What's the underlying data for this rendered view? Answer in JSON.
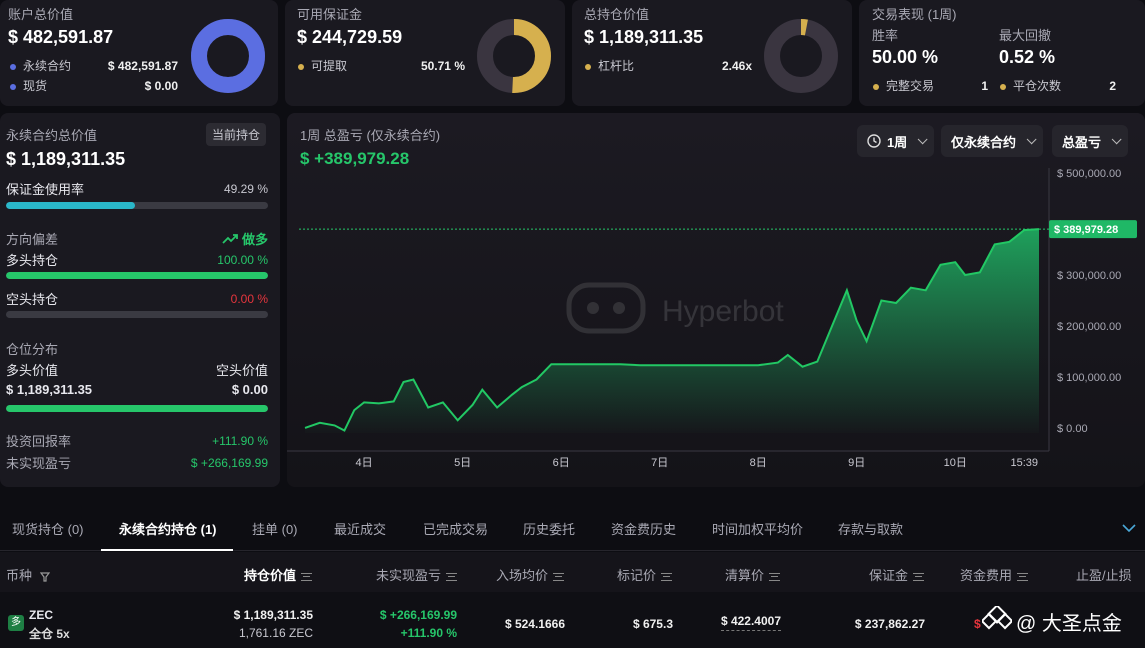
{
  "account": {
    "title": "账户总价值",
    "total": "$ 482,591.87",
    "items": [
      {
        "label": "永续合约",
        "value": "$ 482,591.87",
        "color": "#5b6ee1"
      },
      {
        "label": "现货",
        "value": "$ 0.00",
        "color": "#5b6ee1"
      }
    ],
    "ring_fraction": 1.0,
    "ring_color": "#5b6ee1"
  },
  "margin": {
    "title": "可用保证金",
    "total": "$ 244,729.59",
    "item_label": "可提取",
    "item_value": "50.71 %",
    "dot_color": "#d6b04e",
    "ring_fraction": 0.5071,
    "ring_color": "#d6b04e"
  },
  "position": {
    "title": "总持仓价值",
    "total": "$ 1,189,311.35",
    "item_label": "杠杆比",
    "item_value": "2.46x",
    "dot_color": "#d6b04e",
    "ring_fraction": 0.03,
    "ring_color": "#d6b04e"
  },
  "perf": {
    "title": "交易表现 (1周)",
    "winrate_label": "胜率",
    "winrate_value": "50.00 %",
    "drawdown_label": "最大回撤",
    "drawdown_value": "0.52 %",
    "trades_label": "完整交易",
    "trades_value": "1",
    "close_label": "平仓次数",
    "close_value": "2",
    "dot_color": "#d6b04e"
  },
  "left": {
    "perp_label": "永续合约总价值",
    "current_btn": "当前持仓",
    "perp_value": "$ 1,189,311.35",
    "margin_use_label": "保证金使用率",
    "margin_use_value": "49.29 %",
    "margin_use_fraction": 0.4929,
    "bias_label": "方向偏差",
    "bias_value": "做多",
    "long_label": "多头持仓",
    "long_value": "100.00 %",
    "long_fraction": 1.0,
    "short_label": "空头持仓",
    "short_value": "0.00 %",
    "dist_label": "仓位分布",
    "long_val_label": "多头价值",
    "short_val_label": "空头价值",
    "long_val": "$ 1,189,311.35",
    "short_val": "$ 0.00",
    "roi_label": "投资回报率",
    "roi_value": "+111.90 %",
    "upnl_label": "未实现盈亏",
    "upnl_value": "$ +266,169.99"
  },
  "chart": {
    "title": "1周 总盈亏 (仅永续合约)",
    "value": "$ +389,979.28",
    "dd_period": "1周",
    "dd_scope": "仅永续合约",
    "dd_metric": "总盈亏",
    "watermark": "Hyperbot",
    "last_label": "$ 389,979.28"
  },
  "chart_data": {
    "type": "area",
    "x_ticks": [
      "4日",
      "5日",
      "6日",
      "7日",
      "8日",
      "9日",
      "10日",
      "15:39"
    ],
    "y_ticks": [
      "$ 500,000.00",
      "$ 400,000.00",
      "$ 300,000.00",
      "$ 200,000.00",
      "$ 100,000.00",
      "$ 0.00"
    ],
    "ylim": [
      -10000,
      500000
    ],
    "x": [
      3.4,
      3.55,
      3.7,
      3.8,
      3.9,
      4.0,
      4.15,
      4.3,
      4.4,
      4.5,
      4.65,
      4.8,
      4.95,
      5.1,
      5.2,
      5.35,
      5.5,
      5.6,
      5.75,
      5.9,
      6.0,
      6.2,
      6.4,
      6.6,
      6.8,
      7.0,
      7.2,
      7.4,
      7.6,
      7.8,
      8.0,
      8.2,
      8.3,
      8.45,
      8.6,
      8.75,
      8.9,
      9.0,
      9.1,
      9.25,
      9.4,
      9.55,
      9.7,
      9.85,
      10.0,
      10.1,
      10.25,
      10.4,
      10.55,
      10.7,
      10.85
    ],
    "y": [
      0,
      10000,
      5000,
      -5000,
      35000,
      50000,
      48000,
      52000,
      90000,
      95000,
      40000,
      50000,
      15000,
      45000,
      75000,
      40000,
      65000,
      80000,
      95000,
      125000,
      125000,
      125000,
      125000,
      125000,
      123000,
      123000,
      123000,
      123000,
      123000,
      123000,
      123000,
      128000,
      143000,
      120000,
      130000,
      200000,
      270000,
      210000,
      170000,
      250000,
      245000,
      275000,
      270000,
      320000,
      325000,
      300000,
      305000,
      360000,
      365000,
      388000,
      389979.28
    ]
  },
  "tabs": [
    {
      "label": "现货持仓 (0)",
      "active": false
    },
    {
      "label": "永续合约持仓 (1)",
      "active": true
    },
    {
      "label": "挂单 (0)",
      "active": false
    },
    {
      "label": "最近成交",
      "active": false
    },
    {
      "label": "已完成交易",
      "active": false
    },
    {
      "label": "历史委托",
      "active": false
    },
    {
      "label": "资金费历史",
      "active": false
    },
    {
      "label": "时间加权平均价",
      "active": false
    },
    {
      "label": "存款与取款",
      "active": false
    }
  ],
  "table": {
    "headers": [
      "币种",
      "持仓价值",
      "未实现盈亏",
      "入场均价",
      "标记价",
      "清算价",
      "保证金",
      "资金费用",
      "止盈/止损"
    ],
    "row": {
      "badge": "多",
      "coin": "ZEC",
      "mode": "全仓 5x",
      "pos_value": "$ 1,189,311.35",
      "pos_qty": "1,761.16 ZEC",
      "upnl": "$ +266,169.99",
      "upnl_pct": "+111.90 %",
      "entry": "$ 524.1666",
      "mark": "$ 675.3",
      "liq": "$ 422.4007",
      "margin": "$ 237,862.27",
      "funding": "$"
    }
  },
  "watermark_text": "@ 大圣点金"
}
